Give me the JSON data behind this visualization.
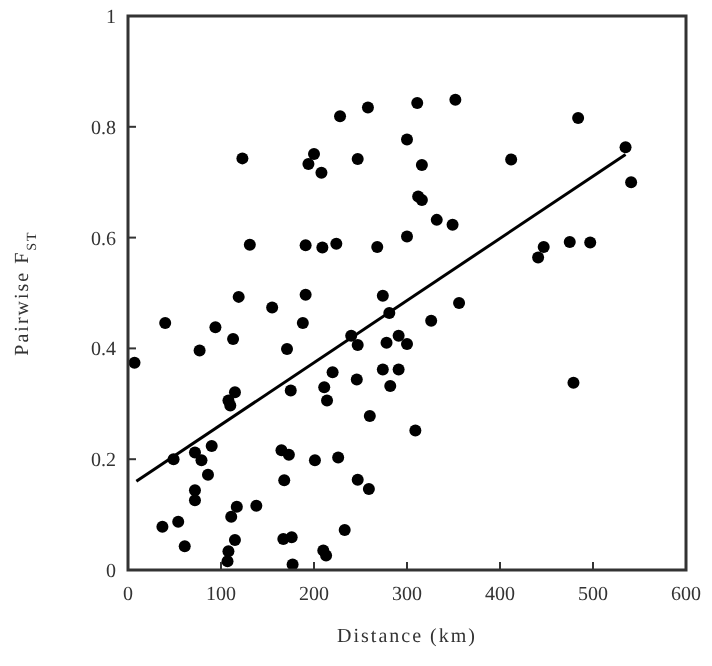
{
  "chart_data": {
    "type": "scatter",
    "xlabel": "Distance (km)",
    "ylabel": "Pairwise F$_{ST}$",
    "xlim": [
      0,
      600
    ],
    "ylim": [
      0,
      1
    ],
    "xticks": [
      0,
      100,
      200,
      300,
      400,
      500,
      600
    ],
    "yticks": [
      0,
      0.2,
      0.4,
      0.6,
      0.8,
      1
    ],
    "grid": false,
    "marker": "circle",
    "series": [
      {
        "color": "#000000",
        "x": [
          7,
          40,
          49,
          37,
          54,
          61,
          72,
          72,
          72,
          79,
          86,
          90,
          77,
          94,
          113,
          119,
          108,
          110,
          115,
          111,
          117,
          115,
          108,
          107,
          138,
          155,
          171,
          165,
          173,
          168,
          167,
          176,
          177,
          175,
          188,
          191,
          201,
          210,
          213,
          211,
          214,
          220,
          226,
          233,
          240,
          247,
          246,
          247,
          259,
          260,
          274,
          281,
          278,
          274,
          282,
          291,
          291,
          300,
          356,
          326,
          309,
          479,
          123,
          228,
          258,
          300,
          200,
          194,
          208,
          247,
          131,
          191,
          209,
          224,
          268,
          300,
          311,
          352,
          316,
          312,
          316,
          332,
          349,
          412,
          484,
          535,
          541,
          447,
          441,
          475,
          497
        ],
        "values": [
          0.374,
          0.446,
          0.2,
          0.078,
          0.087,
          0.043,
          0.144,
          0.126,
          0.212,
          0.198,
          0.172,
          0.224,
          0.396,
          0.438,
          0.417,
          0.493,
          0.306,
          0.297,
          0.321,
          0.096,
          0.114,
          0.054,
          0.034,
          0.016,
          0.116,
          0.474,
          0.399,
          0.216,
          0.208,
          0.162,
          0.056,
          0.059,
          0.01,
          0.324,
          0.446,
          0.497,
          0.198,
          0.035,
          0.026,
          0.33,
          0.306,
          0.357,
          0.203,
          0.072,
          0.423,
          0.406,
          0.344,
          0.163,
          0.146,
          0.278,
          0.495,
          0.464,
          0.41,
          0.362,
          0.332,
          0.423,
          0.362,
          0.408,
          0.482,
          0.45,
          0.252,
          0.338,
          0.743,
          0.819,
          0.835,
          0.777,
          0.751,
          0.733,
          0.717,
          0.742,
          0.587,
          0.586,
          0.582,
          0.589,
          0.583,
          0.602,
          0.843,
          0.849,
          0.731,
          0.674,
          0.668,
          0.632,
          0.623,
          0.741,
          0.816,
          0.763,
          0.7,
          0.583,
          0.564,
          0.592,
          0.591
        ]
      },
      {
        "type": "line",
        "color": "#000000",
        "x": [
          9,
          535
        ],
        "values": [
          0.16,
          0.75
        ],
        "marker": "none",
        "line_style": "solid"
      }
    ]
  }
}
